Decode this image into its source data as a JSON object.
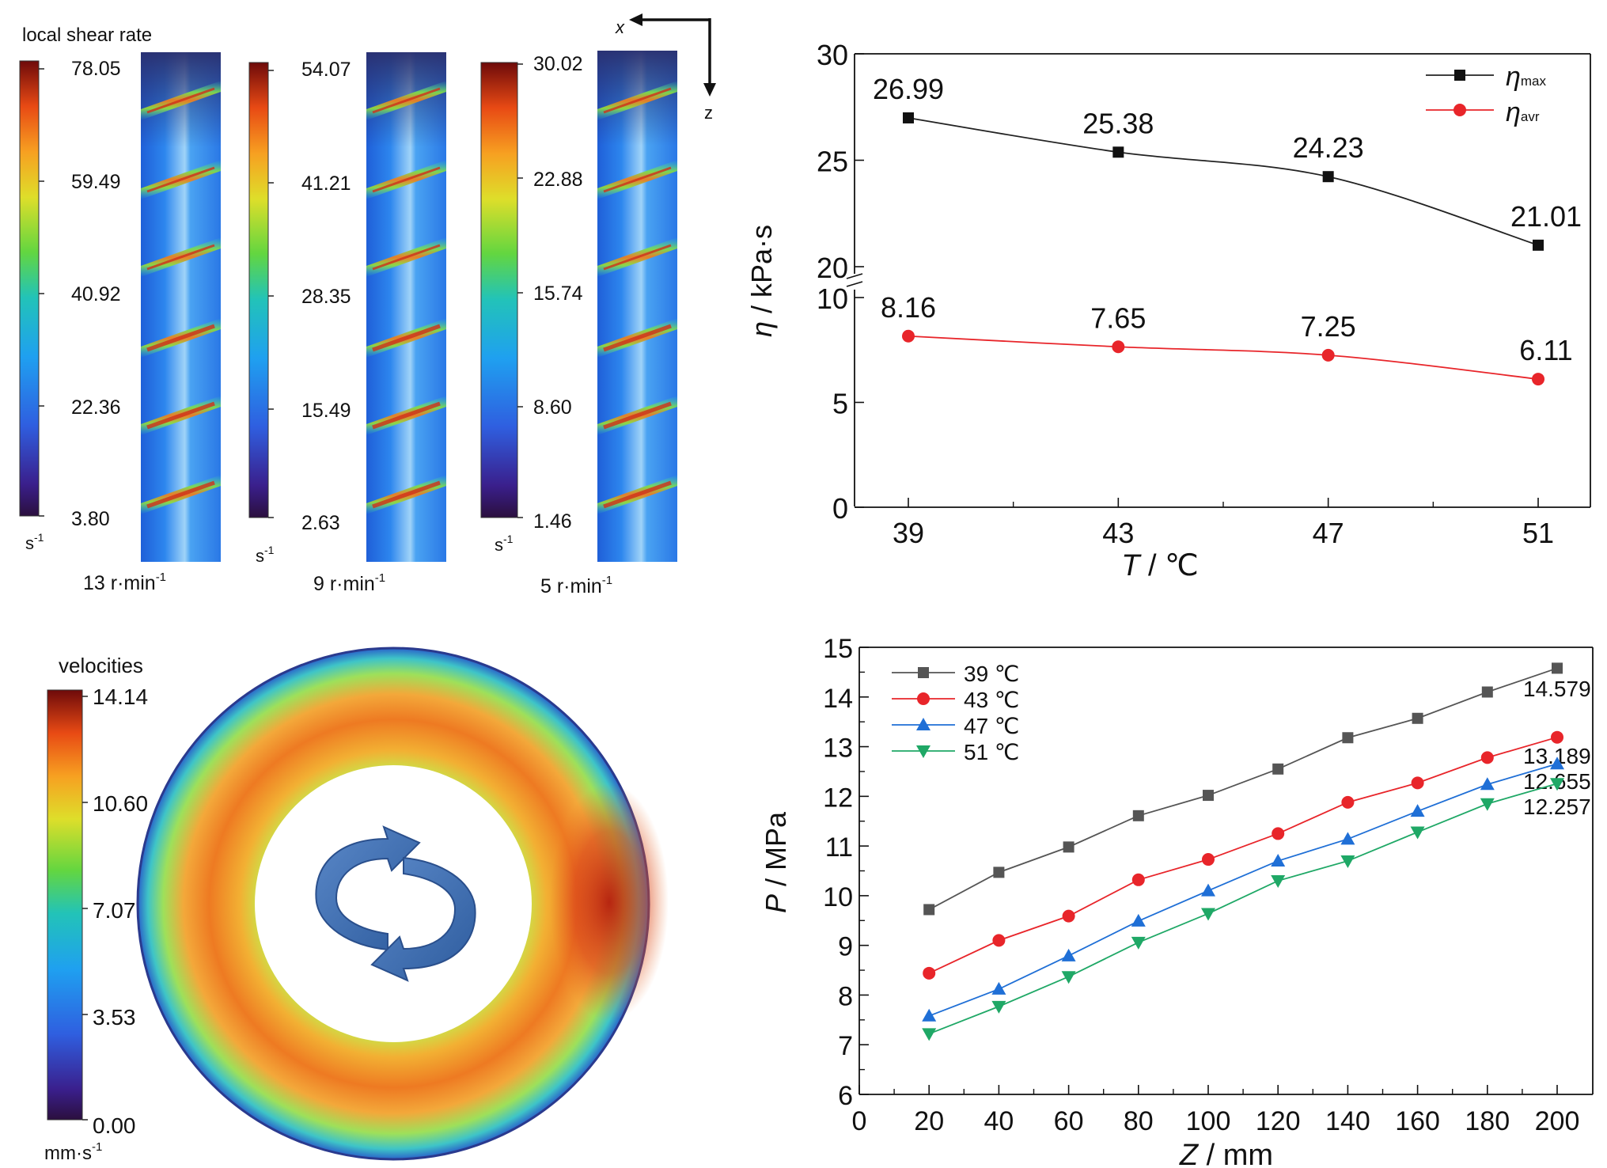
{
  "shear_panel": {
    "title": "local shear rate",
    "unit": "s",
    "unit_sup": "-1",
    "bars": [
      {
        "ticks": [
          "78.05",
          "59.49",
          "40.92",
          "22.36",
          "3.80"
        ],
        "speed": "13 r·min",
        "speed_sup": "-1"
      },
      {
        "ticks": [
          "54.07",
          "41.21",
          "28.35",
          "15.49",
          "2.63"
        ],
        "speed": "9 r·min",
        "speed_sup": "-1"
      },
      {
        "ticks": [
          "30.02",
          "22.88",
          "15.74",
          "8.60",
          "1.46"
        ],
        "speed": "5 r·min",
        "speed_sup": "-1"
      }
    ],
    "axis_x": "x",
    "axis_z": "z"
  },
  "velocity_panel": {
    "title": "velocities",
    "ticks": [
      "14.14",
      "10.60",
      "7.07",
      "3.53",
      "0.00"
    ],
    "unit": "mm·s",
    "unit_sup": "-1"
  },
  "colors": {
    "black_series": "#222222",
    "red_series": "#e8252a",
    "gray_series": "#555555",
    "blue_series": "#1f6fd6",
    "green_series": "#1fa866",
    "arrow_blue": "#3f6fb0"
  },
  "chart_data": [
    {
      "type": "line",
      "x": [
        39,
        43,
        47,
        51
      ],
      "xticks": [
        "39",
        "43",
        "47",
        "51"
      ],
      "xlabel_italic": "T",
      "xlabel_rest": " / ℃",
      "ylabel_italic": "η",
      "ylabel_rest": " / kPa·s",
      "y_ticks_upper": [
        "20",
        "25",
        "30"
      ],
      "y_ticks_lower": [
        "0",
        "5",
        "10"
      ],
      "axis_break": true,
      "ylim_upper": [
        20,
        30
      ],
      "ylim_lower": [
        0,
        10
      ],
      "legend_position": "top-right",
      "series": [
        {
          "name": "η",
          "name_sub": "max",
          "values": [
            26.99,
            25.38,
            24.23,
            21.01
          ],
          "labels": [
            "26.99",
            "25.38",
            "24.23",
            "21.01"
          ],
          "marker": "square"
        },
        {
          "name": "η",
          "name_sub": "avr",
          "values": [
            8.16,
            7.65,
            7.25,
            6.11
          ],
          "labels": [
            "8.16",
            "7.65",
            "7.25",
            "6.11"
          ],
          "marker": "circle"
        }
      ]
    },
    {
      "type": "line",
      "x": [
        20,
        40,
        60,
        80,
        100,
        120,
        140,
        160,
        180,
        200
      ],
      "xticks": [
        "0",
        "20",
        "40",
        "60",
        "80",
        "100",
        "120",
        "140",
        "160",
        "180",
        "200"
      ],
      "yticks": [
        "6",
        "7",
        "8",
        "9",
        "10",
        "11",
        "12",
        "13",
        "14",
        "15"
      ],
      "xlim": [
        0,
        210
      ],
      "ylim": [
        6,
        15
      ],
      "xlabel_italic": "Z",
      "xlabel_rest": " / mm",
      "ylabel_italic": "P",
      "ylabel_rest": " / MPa",
      "legend_position": "top-left",
      "series": [
        {
          "name": "39 ℃",
          "marker": "square",
          "end_label": "14.579",
          "values": [
            9.72,
            10.47,
            10.98,
            11.61,
            12.02,
            12.55,
            13.18,
            13.57,
            14.1,
            14.579
          ]
        },
        {
          "name": "43 ℃",
          "marker": "circle",
          "end_label": "13.189",
          "values": [
            8.44,
            9.1,
            9.59,
            10.32,
            10.73,
            11.25,
            11.88,
            12.27,
            12.78,
            13.189
          ]
        },
        {
          "name": "47 ℃",
          "marker": "triangle-up",
          "end_label": "12.655",
          "values": [
            7.58,
            8.12,
            8.79,
            9.49,
            10.1,
            10.7,
            11.14,
            11.7,
            12.24,
            12.655
          ]
        },
        {
          "name": "51 ℃",
          "marker": "triangle-down",
          "end_label": "12.257",
          "values": [
            7.22,
            7.77,
            8.37,
            9.06,
            9.64,
            10.3,
            10.7,
            11.28,
            11.85,
            12.257
          ]
        }
      ]
    }
  ]
}
